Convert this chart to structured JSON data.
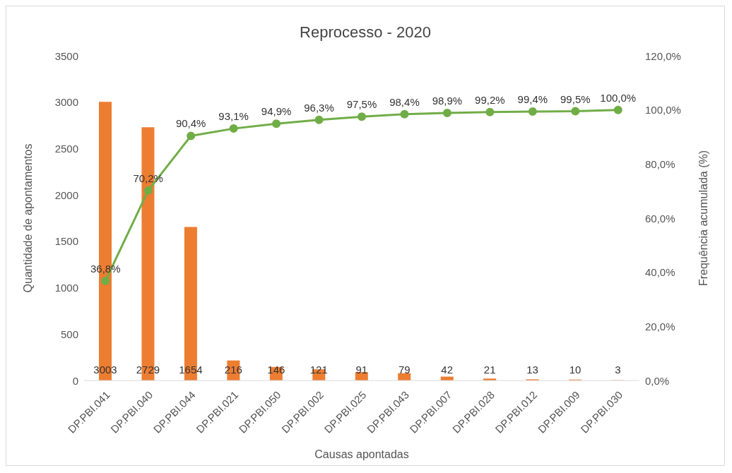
{
  "chart_data": {
    "type": "bar",
    "title": "Reprocesso - 2020",
    "xlabel": "Causas apontadas",
    "ylabel": "Quantidade de apontamentos",
    "y2label": "Frequência acumulada (%)",
    "categories": [
      "DP.PBI.041",
      "DP.PBI.040",
      "DP.PBI.044",
      "DP.PBI.021",
      "DP.PBI.050",
      "DP.PBI.002",
      "DP.PBI.025",
      "DP.PBI.043",
      "DP.PBI.007",
      "DP.PBI.028",
      "DP.PBI.012",
      "DP.PBI.009",
      "DP.PBI.030"
    ],
    "series": [
      {
        "color": "#ed7d31",
        "values": [
          3003,
          2729,
          1654,
          216,
          146,
          121,
          91,
          79,
          42,
          21,
          13,
          10,
          3
        ],
        "value_labels": [
          "3003",
          "2729",
          "1654",
          "216",
          "146",
          "121",
          "91",
          "79",
          "42",
          "21",
          "13",
          "10",
          "3"
        ]
      },
      {
        "type": "line",
        "axis": "y2",
        "color": "#70ad47",
        "marker": "circle",
        "values": [
          36.8,
          70.2,
          90.4,
          93.1,
          94.9,
          96.3,
          97.5,
          98.4,
          98.9,
          99.2,
          99.4,
          99.5,
          100.0
        ],
        "value_labels": [
          "36,8%",
          "70,2%",
          "90,4%",
          "93,1%",
          "94,9%",
          "96,3%",
          "97,5%",
          "98,4%",
          "98,9%",
          "99,2%",
          "99,4%",
          "99,5%",
          "100,0%"
        ]
      }
    ],
    "ylim": [
      0,
      3500
    ],
    "yticks": [
      0,
      500,
      1000,
      1500,
      2000,
      2500,
      3000,
      3500
    ],
    "y2lim": [
      0,
      120
    ],
    "y2ticks": [
      {
        "value": 0,
        "label": "0,0%"
      },
      {
        "value": 20,
        "label": "20,0%"
      },
      {
        "value": 40,
        "label": "40,0%"
      },
      {
        "value": 60,
        "label": "60,0%"
      },
      {
        "value": 80,
        "label": "80,0%"
      },
      {
        "value": 100,
        "label": "100,0%"
      },
      {
        "value": 120,
        "label": "120,0%"
      }
    ],
    "grid": false,
    "legend": false
  }
}
